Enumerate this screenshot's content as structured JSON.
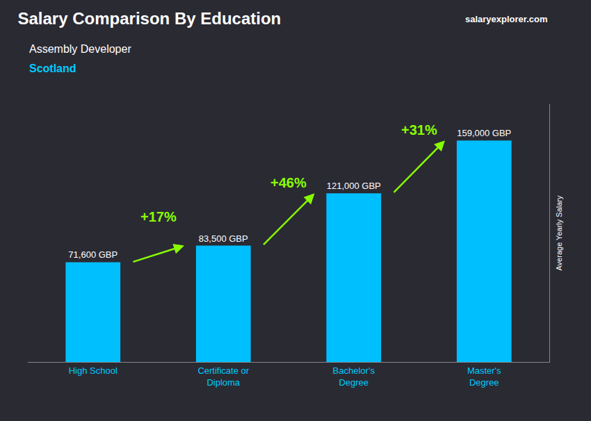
{
  "chart_data": {
    "type": "bar",
    "title": "Salary Comparison By Education",
    "subtitle": [
      "Assembly Developer",
      "Scotland"
    ],
    "watermark": "salaryexplorer.com",
    "ylabel": "Average Yearly Salary",
    "categories": [
      "High School",
      "Certificate or\nDiploma",
      "Bachelor's\nDegree",
      "Master's\nDegree"
    ],
    "values": [
      71600,
      83500,
      121000,
      159000
    ],
    "value_labels": [
      "71,600 GBP",
      "83,500 GBP",
      "121,000 GBP",
      "159,000 GBP"
    ],
    "data_labels": true,
    "color": "#00BFFF",
    "ylim": [
      0,
      185000
    ],
    "yticks": [],
    "tick_labels": "x",
    "grid": false,
    "annotations": [
      {
        "text": "+17%",
        "color": "#88FF00"
      },
      {
        "text": "+46%",
        "color": "#88FF00"
      },
      {
        "text": "+31%",
        "color": "#88FF00"
      }
    ]
  }
}
